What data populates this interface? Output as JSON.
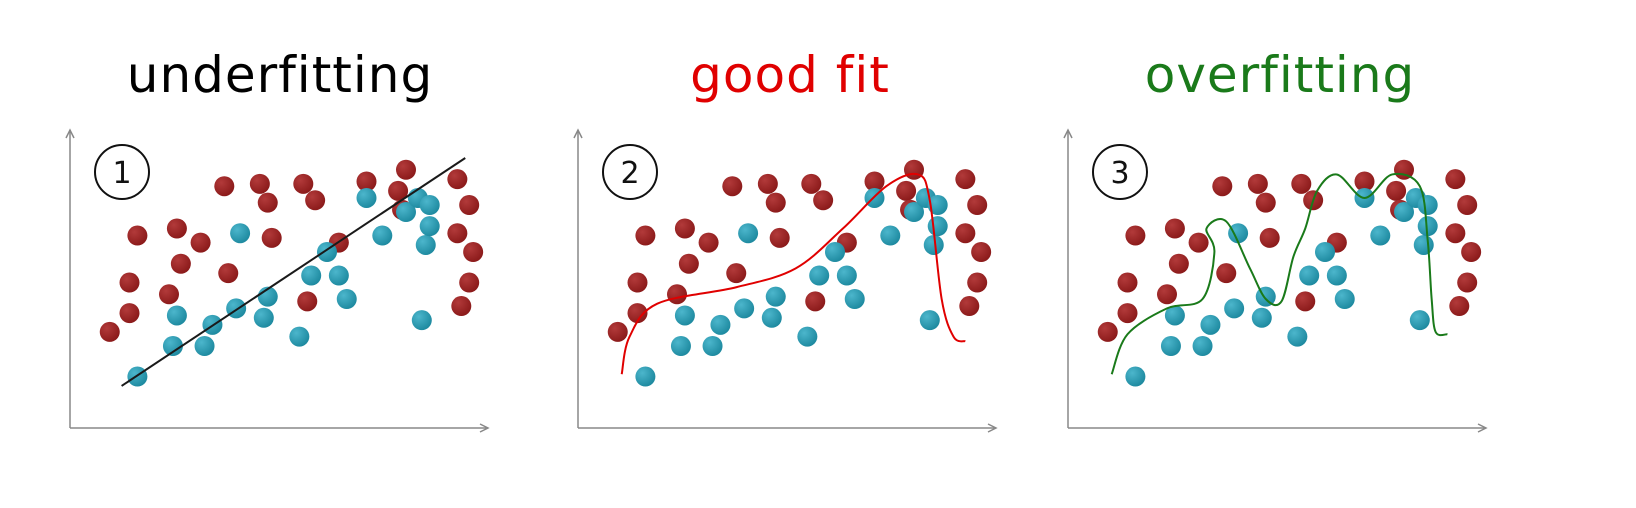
{
  "panels": [
    {
      "title": "underfitting",
      "title_color": "#000000",
      "badge": "1",
      "curve_color": "#1a1a1a",
      "fit": "linear",
      "curve": [
        [
          0.08,
          0.03
        ],
        [
          0.95,
          1.0
        ]
      ]
    },
    {
      "title": "good fit",
      "title_color": "#e00000",
      "badge": "2",
      "curve_color": "#e00000",
      "fit": "smooth",
      "curve": [
        [
          0.06,
          0.08
        ],
        [
          0.08,
          0.24
        ],
        [
          0.15,
          0.38
        ],
        [
          0.35,
          0.45
        ],
        [
          0.5,
          0.53
        ],
        [
          0.62,
          0.7
        ],
        [
          0.73,
          0.88
        ],
        [
          0.81,
          0.93
        ],
        [
          0.84,
          0.82
        ],
        [
          0.87,
          0.4
        ],
        [
          0.9,
          0.24
        ],
        [
          0.93,
          0.22
        ]
      ]
    },
    {
      "title": "overfitting",
      "title_color": "#1a7a1a",
      "badge": "3",
      "curve_color": "#1a7a1a",
      "fit": "wiggly",
      "curve": [
        [
          0.06,
          0.08
        ],
        [
          0.1,
          0.25
        ],
        [
          0.2,
          0.36
        ],
        [
          0.29,
          0.4
        ],
        [
          0.32,
          0.6
        ],
        [
          0.3,
          0.7
        ],
        [
          0.35,
          0.73
        ],
        [
          0.41,
          0.53
        ],
        [
          0.45,
          0.4
        ],
        [
          0.49,
          0.39
        ],
        [
          0.52,
          0.58
        ],
        [
          0.55,
          0.7
        ],
        [
          0.58,
          0.86
        ],
        [
          0.63,
          0.93
        ],
        [
          0.7,
          0.83
        ],
        [
          0.77,
          0.93
        ],
        [
          0.84,
          0.88
        ],
        [
          0.86,
          0.65
        ],
        [
          0.87,
          0.4
        ],
        [
          0.88,
          0.26
        ],
        [
          0.91,
          0.25
        ]
      ]
    }
  ],
  "dots": {
    "red_color": "#8b1a1a",
    "blue_color": "#1e8aa0",
    "red": [
      [
        0.05,
        0.26
      ],
      [
        0.1,
        0.34
      ],
      [
        0.1,
        0.47
      ],
      [
        0.12,
        0.67
      ],
      [
        0.2,
        0.42
      ],
      [
        0.23,
        0.55
      ],
      [
        0.22,
        0.7
      ],
      [
        0.28,
        0.64
      ],
      [
        0.34,
        0.88
      ],
      [
        0.35,
        0.51
      ],
      [
        0.43,
        0.89
      ],
      [
        0.45,
        0.81
      ],
      [
        0.46,
        0.66
      ],
      [
        0.54,
        0.89
      ],
      [
        0.55,
        0.39
      ],
      [
        0.57,
        0.82
      ],
      [
        0.63,
        0.64
      ],
      [
        0.7,
        0.9
      ],
      [
        0.78,
        0.86
      ],
      [
        0.79,
        0.78
      ],
      [
        0.8,
        0.95
      ],
      [
        0.93,
        0.91
      ],
      [
        0.93,
        0.68
      ],
      [
        0.96,
        0.8
      ],
      [
        0.97,
        0.6
      ],
      [
        0.96,
        0.47
      ],
      [
        0.94,
        0.37
      ]
    ],
    "blue": [
      [
        0.12,
        0.07
      ],
      [
        0.21,
        0.2
      ],
      [
        0.22,
        0.33
      ],
      [
        0.29,
        0.2
      ],
      [
        0.31,
        0.29
      ],
      [
        0.37,
        0.36
      ],
      [
        0.38,
        0.68
      ],
      [
        0.44,
        0.32
      ],
      [
        0.45,
        0.41
      ],
      [
        0.53,
        0.24
      ],
      [
        0.56,
        0.5
      ],
      [
        0.6,
        0.6
      ],
      [
        0.63,
        0.5
      ],
      [
        0.65,
        0.4
      ],
      [
        0.7,
        0.83
      ],
      [
        0.74,
        0.67
      ],
      [
        0.8,
        0.77
      ],
      [
        0.83,
        0.83
      ],
      [
        0.84,
        0.31
      ],
      [
        0.85,
        0.63
      ],
      [
        0.86,
        0.71
      ],
      [
        0.86,
        0.8
      ]
    ]
  }
}
